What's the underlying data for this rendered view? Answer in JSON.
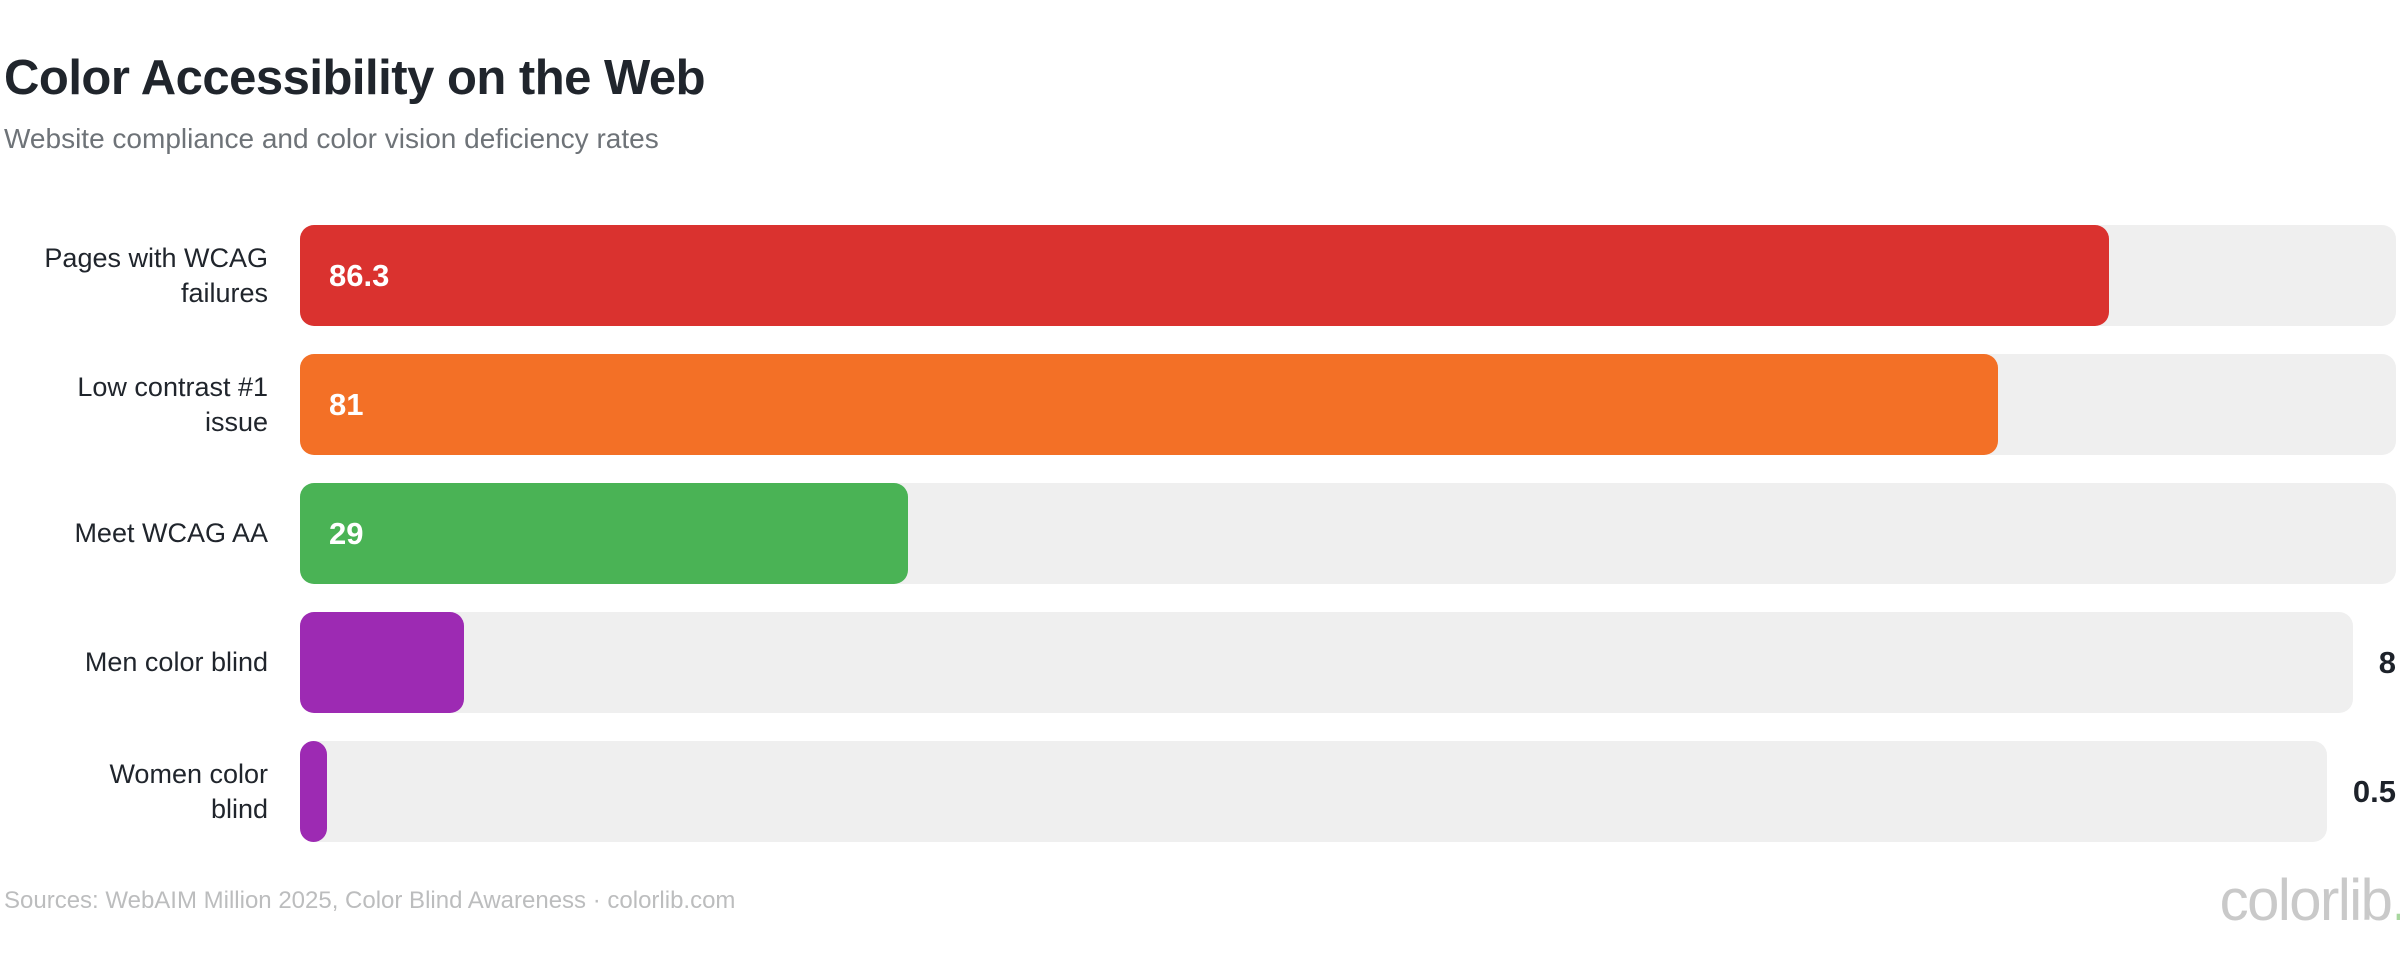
{
  "header": {
    "title": "Color Accessibility on the Web",
    "subtitle": "Website compliance and color vision deficiency rates"
  },
  "chart_data": {
    "type": "bar",
    "orientation": "horizontal",
    "title": "Color Accessibility on the Web",
    "subtitle": "Website compliance and color vision deficiency rates",
    "xlim": [
      0,
      100
    ],
    "unit": "percent",
    "grid": false,
    "legend": false,
    "categories": [
      "Pages with WCAG failures",
      "Low contrast #1 issue",
      "Meet WCAG AA",
      "Men color blind",
      "Women color blind"
    ],
    "label_lines": [
      [
        "Pages with WCAG",
        "failures"
      ],
      [
        "Low contrast #1",
        "issue"
      ],
      [
        "Meet WCAG AA"
      ],
      [
        "Men color blind"
      ],
      [
        "Women color",
        "blind"
      ]
    ],
    "values": [
      86.3,
      81,
      29,
      8,
      0.5
    ],
    "value_labels": [
      "86.3",
      "81",
      "29",
      "8",
      "0.5"
    ],
    "value_label_position": [
      "inside",
      "inside",
      "inside",
      "outside",
      "outside"
    ],
    "bar_colors": [
      "#da322f",
      "#f37026",
      "#4ab355",
      "#9d2ab3",
      "#9d2ab3"
    ],
    "track_color": "#efefef"
  },
  "footer": {
    "sources": "Sources: WebAIM Million 2025, Color Blind Awareness · colorlib.com",
    "logo_text": "colorlib",
    "logo_dot": "."
  },
  "colors": {
    "title": "#20252c",
    "subtitle": "#6e7378",
    "value_inside": "#ffffff",
    "value_outside": "#1d222a",
    "sources_text": "#bcbdbe",
    "logo_gray": "#c9c9c9",
    "logo_dot_green": "#a8d79f",
    "background": "#ffffff"
  }
}
